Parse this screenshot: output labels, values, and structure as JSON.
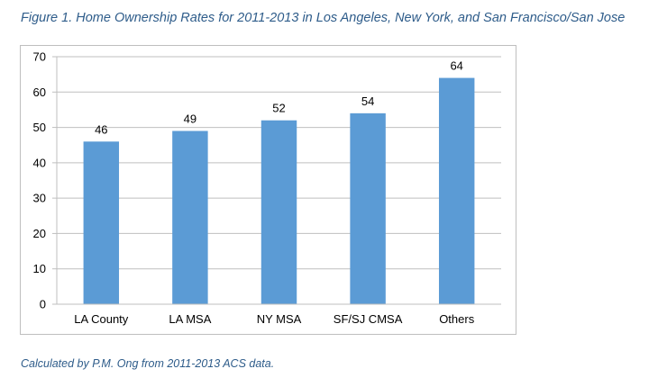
{
  "figure": {
    "title": "Figure 1. Home Ownership Rates for 2011-2013 in Los Angeles, New York, and San Francisco/San Jose",
    "caption": "Calculated by P.M. Ong from 2011-2013 ACS data."
  },
  "colors": {
    "bar": "#5b9bd5",
    "gridline": "#bfbfbf",
    "title_text": "#2e5c8a"
  },
  "chart_data": {
    "type": "bar",
    "categories": [
      "LA County",
      "LA MSA",
      "NY MSA",
      "SF/SJ CMSA",
      "Others"
    ],
    "values": [
      46,
      49,
      52,
      54,
      64
    ],
    "data_labels": [
      "46",
      "49",
      "52",
      "54",
      "64"
    ],
    "title": "",
    "xlabel": "",
    "ylabel": "",
    "ylim": [
      0,
      70
    ],
    "yticks": [
      0,
      10,
      20,
      30,
      40,
      50,
      60,
      70
    ],
    "grid": true,
    "legend": "none"
  }
}
